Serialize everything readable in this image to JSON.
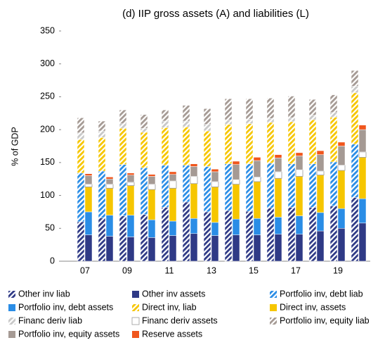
{
  "chart_data": {
    "type": "stacked-bar",
    "title": "(d) IIP gross assets (A) and liabilities (L)",
    "y_label": "% of GDP",
    "categories": [
      "07",
      null,
      "09",
      null,
      "11",
      null,
      "13",
      null,
      "15",
      null,
      "17",
      null,
      "19",
      null
    ],
    "ylim": [
      0,
      350
    ],
    "yticks": [
      0,
      50,
      100,
      150,
      200,
      250,
      300,
      350
    ],
    "grid": false,
    "series": [
      {
        "name": "Other inv liab",
        "color": "#2f3a86",
        "hatch": true,
        "stack": "L",
        "values": [
          60,
          66,
          69,
          71,
          82,
          90,
          75,
          77,
          76,
          81,
          82,
          82,
          84,
          97
        ]
      },
      {
        "name": "Other inv assets",
        "color": "#2f3a86",
        "hatch": false,
        "stack": "A",
        "values": [
          40,
          38,
          37,
          36,
          39,
          42,
          39,
          40,
          40,
          41,
          41,
          46,
          50,
          58
        ]
      },
      {
        "name": "Portfolio inv, debt liab",
        "color": "#2a8de6",
        "hatch": true,
        "stack": "L",
        "values": [
          74,
          71,
          78,
          71,
          64,
          56,
          69,
          71,
          72,
          68,
          66,
          66,
          67,
          81
        ]
      },
      {
        "name": "Portfolio inv, debt assets",
        "color": "#2a8de6",
        "hatch": false,
        "stack": "A",
        "values": [
          35,
          32,
          33,
          27,
          22,
          23,
          20,
          24,
          25,
          26,
          28,
          28,
          30,
          37
        ]
      },
      {
        "name": "Direct inv, liab",
        "color": "#f6c600",
        "hatch": true,
        "stack": "L",
        "values": [
          51,
          51,
          55,
          54,
          57,
          58,
          54,
          60,
          61,
          62,
          64,
          67,
          68,
          78
        ]
      },
      {
        "name": "Direct inv, assets",
        "color": "#f6c600",
        "hatch": false,
        "stack": "A",
        "values": [
          38,
          41,
          45,
          46,
          50,
          53,
          54,
          53,
          56,
          59,
          60,
          57,
          58,
          63
        ]
      },
      {
        "name": "Financ deriv liab",
        "color": "#c8c8c8",
        "hatch": true,
        "stack": "L",
        "values": [
          10,
          10,
          7,
          6,
          10,
          9,
          10,
          7,
          7,
          6,
          6,
          7,
          7,
          10
        ]
      },
      {
        "name": "Financ deriv assets",
        "color": "#ffffff",
        "hatch": false,
        "stack": "A",
        "values": [
          4,
          6,
          5,
          8,
          11,
          11,
          8,
          7,
          7,
          10,
          10,
          6,
          8,
          8
        ]
      },
      {
        "name": "Portfolio inv, equity liab",
        "color": "#a59a94",
        "hatch": true,
        "stack": "L",
        "values": [
          23,
          15,
          21,
          21,
          17,
          24,
          24,
          32,
          31,
          31,
          33,
          24,
          27,
          24
        ]
      },
      {
        "name": "Portfolio inv, equity assets",
        "color": "#a59a94",
        "hatch": false,
        "stack": "A",
        "values": [
          13,
          8,
          11,
          12,
          10,
          15,
          15,
          23,
          25,
          21,
          21,
          25,
          29,
          34
        ]
      },
      {
        "name": "Reserve assets",
        "color": "#f0561d",
        "hatch": false,
        "stack": "A",
        "values": [
          3,
          3,
          3,
          3,
          4,
          4,
          4,
          5,
          5,
          5,
          5,
          6,
          6,
          7
        ]
      }
    ]
  }
}
